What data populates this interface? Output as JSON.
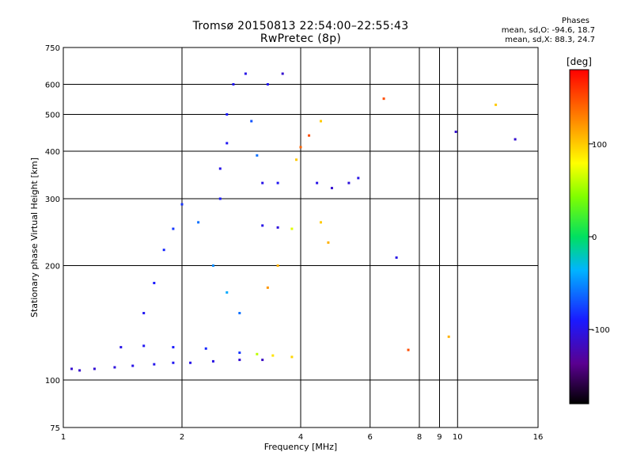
{
  "chart_data": {
    "type": "scatter",
    "title": "Tromsø 20150813 22:54:00–22:55:43",
    "subtitle": "RwPretec (8p)",
    "xlabel": "Frequency [MHz]",
    "ylabel": "Stationary phase Virtual Height [km]",
    "xscale": "log",
    "yscale": "log",
    "xlim": [
      1,
      16
    ],
    "ylim": [
      75,
      750
    ],
    "x_ticks": [
      1,
      2,
      4,
      6,
      8,
      9,
      10,
      16
    ],
    "x_tick_labels": [
      "1",
      "2",
      "4",
      "6",
      "8",
      "9",
      "10",
      "16"
    ],
    "y_ticks": [
      75,
      100,
      200,
      300,
      400,
      500,
      600,
      750
    ],
    "y_tick_labels": [
      "75",
      "100",
      "200",
      "300",
      "400",
      "500",
      "600",
      "750"
    ],
    "grid": true,
    "phase_stats": {
      "heading": "Phases",
      "line_o": "mean, sd,O: -94.6, 18.7",
      "line_x": "mean, sd,X:  88.3, 24.7"
    },
    "colorbar": {
      "label": "[deg]",
      "range": [
        -180,
        180
      ],
      "ticks": [
        100,
        0,
        -100
      ],
      "tick_labels": [
        "100",
        "0",
        "-100"
      ]
    },
    "trace_points": [
      {
        "x": 1.05,
        "y": 107,
        "phase": -110
      },
      {
        "x": 1.1,
        "y": 106,
        "phase": -112
      },
      {
        "x": 1.2,
        "y": 107,
        "phase": -108
      },
      {
        "x": 1.35,
        "y": 108,
        "phase": -105
      },
      {
        "x": 1.5,
        "y": 109,
        "phase": -100
      },
      {
        "x": 1.7,
        "y": 110,
        "phase": -98
      },
      {
        "x": 1.9,
        "y": 111,
        "phase": -95
      },
      {
        "x": 2.1,
        "y": 111,
        "phase": -100
      },
      {
        "x": 2.4,
        "y": 112,
        "phase": -102
      },
      {
        "x": 2.8,
        "y": 113,
        "phase": -110
      },
      {
        "x": 3.2,
        "y": 113,
        "phase": -115
      },
      {
        "x": 1.4,
        "y": 122,
        "phase": -100
      },
      {
        "x": 1.6,
        "y": 123,
        "phase": -95
      },
      {
        "x": 1.9,
        "y": 122,
        "phase": -90
      },
      {
        "x": 2.3,
        "y": 121,
        "phase": -85
      },
      {
        "x": 2.8,
        "y": 118,
        "phase": -80
      },
      {
        "x": 3.1,
        "y": 117,
        "phase": 60
      },
      {
        "x": 3.4,
        "y": 116,
        "phase": 90
      },
      {
        "x": 3.8,
        "y": 115,
        "phase": 95
      },
      {
        "x": 1.6,
        "y": 150,
        "phase": -95
      },
      {
        "x": 1.7,
        "y": 180,
        "phase": -90
      },
      {
        "x": 1.8,
        "y": 220,
        "phase": -85
      },
      {
        "x": 1.9,
        "y": 250,
        "phase": -80
      },
      {
        "x": 2.0,
        "y": 290,
        "phase": -82
      },
      {
        "x": 2.2,
        "y": 260,
        "phase": -60
      },
      {
        "x": 2.4,
        "y": 200,
        "phase": -50
      },
      {
        "x": 2.6,
        "y": 170,
        "phase": -40
      },
      {
        "x": 2.8,
        "y": 150,
        "phase": -60
      },
      {
        "x": 2.5,
        "y": 300,
        "phase": -90
      },
      {
        "x": 2.5,
        "y": 360,
        "phase": -100
      },
      {
        "x": 2.6,
        "y": 420,
        "phase": -95
      },
      {
        "x": 2.6,
        "y": 500,
        "phase": -90
      },
      {
        "x": 2.7,
        "y": 600,
        "phase": -95
      },
      {
        "x": 2.9,
        "y": 640,
        "phase": -100
      },
      {
        "x": 3.0,
        "y": 480,
        "phase": -70
      },
      {
        "x": 3.1,
        "y": 390,
        "phase": -60
      },
      {
        "x": 3.2,
        "y": 330,
        "phase": -100
      },
      {
        "x": 3.5,
        "y": 330,
        "phase": -95
      },
      {
        "x": 3.3,
        "y": 600,
        "phase": -95
      },
      {
        "x": 3.6,
        "y": 640,
        "phase": -110
      },
      {
        "x": 3.2,
        "y": 255,
        "phase": -100
      },
      {
        "x": 3.5,
        "y": 252,
        "phase": -105
      },
      {
        "x": 3.8,
        "y": 250,
        "phase": 70
      },
      {
        "x": 3.9,
        "y": 380,
        "phase": 100
      },
      {
        "x": 4.0,
        "y": 410,
        "phase": 140
      },
      {
        "x": 4.2,
        "y": 440,
        "phase": 150
      },
      {
        "x": 4.5,
        "y": 480,
        "phase": 100
      },
      {
        "x": 4.4,
        "y": 330,
        "phase": -100
      },
      {
        "x": 4.8,
        "y": 320,
        "phase": -110
      },
      {
        "x": 5.3,
        "y": 330,
        "phase": -105
      },
      {
        "x": 5.6,
        "y": 340,
        "phase": -100
      },
      {
        "x": 4.5,
        "y": 260,
        "phase": 100
      },
      {
        "x": 4.7,
        "y": 230,
        "phase": 110
      },
      {
        "x": 3.5,
        "y": 200,
        "phase": 110
      },
      {
        "x": 3.3,
        "y": 175,
        "phase": 120
      },
      {
        "x": 6.5,
        "y": 550,
        "phase": 150
      },
      {
        "x": 7.0,
        "y": 210,
        "phase": -100
      },
      {
        "x": 7.5,
        "y": 120,
        "phase": 150
      },
      {
        "x": 9.5,
        "y": 130,
        "phase": 110
      },
      {
        "x": 9.9,
        "y": 450,
        "phase": -110
      },
      {
        "x": 12.5,
        "y": 530,
        "phase": 100
      },
      {
        "x": 14.0,
        "y": 430,
        "phase": -110
      }
    ]
  }
}
